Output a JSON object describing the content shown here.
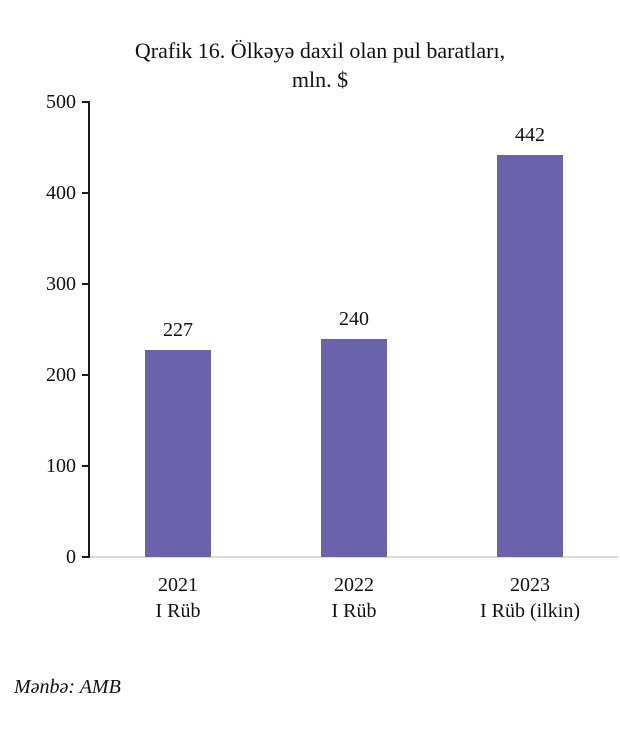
{
  "chart_data": {
    "type": "bar",
    "title_line1": "Qrafik 16. Ölkəyə daxil olan pul baratları,",
    "title_line2": "mln. $",
    "categories": [
      {
        "line1": "2021",
        "line2": "I Rüb"
      },
      {
        "line1": "2022",
        "line2": "I Rüb"
      },
      {
        "line1": "2023",
        "line2": "I Rüb (ilkin)"
      }
    ],
    "values": [
      227,
      240,
      442
    ],
    "bar_labels": [
      "227",
      "240",
      "442"
    ],
    "ylim": [
      0,
      500
    ],
    "yticks": [
      0,
      100,
      200,
      300,
      400,
      500
    ],
    "ytick_labels": [
      "0",
      "100",
      "200",
      "300",
      "400",
      "500"
    ],
    "xlabel": "",
    "ylabel": "",
    "grid": false,
    "legend": "none",
    "bar_color": "#6a63ac",
    "axis_color": "#1a1a1a",
    "baseline_color": "#d9d9d9"
  },
  "source_note": "Mənbə: AMB"
}
